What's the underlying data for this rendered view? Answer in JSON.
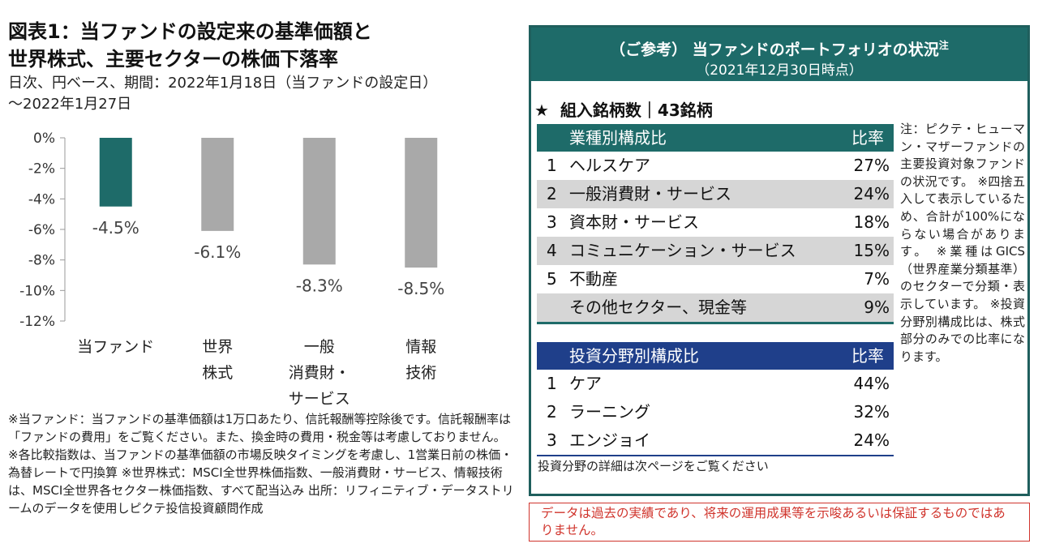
{
  "left": {
    "title_line1": "図表1：当ファンドの設定来の基準価額と",
    "title_line2": "世界株式、主要セクターの株価下落率",
    "subtitle_line1": "日次、円ベース、期間：2022年1月18日（当ファンドの設定日）",
    "subtitle_line2": "～2022年1月27日",
    "footnote": "※当ファンド：当ファンドの基準価額は1万口あたり、信託報酬等控除後です。信託報酬率は「ファンドの費用」をご覧ください。また、換金時の費用・税金等は考慮しておりません。 ※各比較指数は、当ファンドの基準価額の市場反映タイミングを考慮し、1営業日前の株価・為替レートで円換算 ※世界株式：MSCI全世界株価指数、一般消費財・サービス、情報技術は、MSCI全世界各セクター株価指数、すべて配当込み 出所：リフィニティブ・データストリームのデータを使用しピクテ投信投資顧問作成"
  },
  "chart_data": {
    "type": "bar",
    "categories": [
      [
        "当ファンド"
      ],
      [
        "世界",
        "株式"
      ],
      [
        "一般",
        "消費財・",
        "サービス"
      ],
      [
        "情報",
        "技術"
      ]
    ],
    "values": [
      -4.5,
      -6.1,
      -8.3,
      -8.5
    ],
    "data_labels": [
      "-4.5%",
      "-6.1%",
      "-8.3%",
      "-8.5%"
    ],
    "colors": [
      "#1e6b69",
      "#a9a9a9",
      "#a9a9a9",
      "#a9a9a9"
    ],
    "yticks": [
      0,
      -2,
      -4,
      -6,
      -8,
      -10,
      -12
    ],
    "ytick_labels": [
      "0%",
      "-2%",
      "-4%",
      "-6%",
      "-8%",
      "-10%",
      "-12%"
    ],
    "ylim": [
      -12,
      0
    ],
    "grid": false,
    "title": "",
    "xlabel": "",
    "ylabel": ""
  },
  "panel": {
    "header_line1": "（ご参考） 当ファンドのポートフォリオの状況",
    "header_sup": "注",
    "header_line2": "（2021年12月30日時点）",
    "holdings_star": "★",
    "holdings": "組入銘柄数｜43銘柄",
    "sector_table": {
      "header_name": "業種別構成比",
      "header_pct": "比率",
      "rows": [
        {
          "num": "1",
          "name": "ヘルスケア",
          "pct": "27%"
        },
        {
          "num": "2",
          "name": "一般消費財・サービス",
          "pct": "24%"
        },
        {
          "num": "3",
          "name": "資本財・サービス",
          "pct": "18%"
        },
        {
          "num": "4",
          "name": "コミュニケーション・サービス",
          "pct": "15%"
        },
        {
          "num": "5",
          "name": "不動産",
          "pct": "7%"
        },
        {
          "num": "",
          "name": "その他セクター、現金等",
          "pct": "9%"
        }
      ]
    },
    "invest_table": {
      "header_name": "投資分野別構成比",
      "header_pct": "比率",
      "rows": [
        {
          "num": "1",
          "name": "ケア",
          "pct": "44%"
        },
        {
          "num": "2",
          "name": "ラーニング",
          "pct": "32%"
        },
        {
          "num": "3",
          "name": "エンジョイ",
          "pct": "24%"
        }
      ]
    },
    "invest_note": "投資分野の詳細は次ページをご覧ください",
    "side_note": "注：ピクテ・ヒューマン・マザーファンドの主要投資対象ファンドの状況です。 ※四捨五入して表示しているため、合計が100%にならない場合があります。 ※業種はGICS（世界産業分類基準）のセクターで分類・表示しています。 ※投資分野別構成比は、株式部分のみでの比率になります。"
  },
  "disclaimer": "データは過去の実績であり、将来の運用成果等を示唆あるいは保証するものではありません。"
}
